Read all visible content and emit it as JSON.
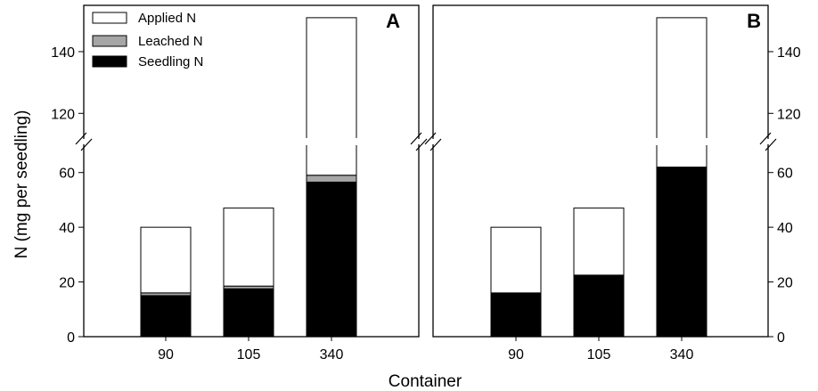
{
  "chart_data": [
    {
      "type": "bar",
      "stacked": true,
      "panel_label": "A",
      "categories": [
        "90",
        "105",
        "340"
      ],
      "series": [
        {
          "name": "Seedling N",
          "values": [
            15,
            17.5,
            56.5
          ],
          "color": "#000000"
        },
        {
          "name": "Leached N",
          "values": [
            1,
            1,
            2.5
          ],
          "color": "#a6a6a6"
        },
        {
          "name": "Applied N",
          "values": [
            24,
            28.5,
            92
          ],
          "color": "#ffffff"
        }
      ],
      "totals": [
        40,
        47,
        151
      ],
      "xlabel": "Container",
      "ylabel": "N (mg per seedling)",
      "y_axis": "left",
      "ylim_lower": [
        0,
        70
      ],
      "ylim_upper": [
        112,
        155
      ],
      "y_break": true,
      "yticks_lower": [
        "0",
        "20",
        "40",
        "60"
      ],
      "yticks_upper": [
        "120",
        "140"
      ],
      "legend": {
        "position": "top-left",
        "entries": [
          "Applied N",
          "Leached N",
          "Seedling N"
        ]
      }
    },
    {
      "type": "bar",
      "stacked": true,
      "panel_label": "B",
      "categories": [
        "90",
        "105",
        "340"
      ],
      "series": [
        {
          "name": "Seedling N",
          "values": [
            16,
            22.5,
            62
          ],
          "color": "#000000"
        },
        {
          "name": "Applied N",
          "values": [
            24,
            24.5,
            89
          ],
          "color": "#ffffff"
        }
      ],
      "totals": [
        40,
        47,
        151
      ],
      "y_axis": "right",
      "ylim_lower": [
        0,
        70
      ],
      "ylim_upper": [
        112,
        155
      ],
      "y_break": true,
      "yticks_lower": [
        "0",
        "20",
        "40",
        "60"
      ],
      "yticks_upper": [
        "120",
        "140"
      ]
    }
  ]
}
